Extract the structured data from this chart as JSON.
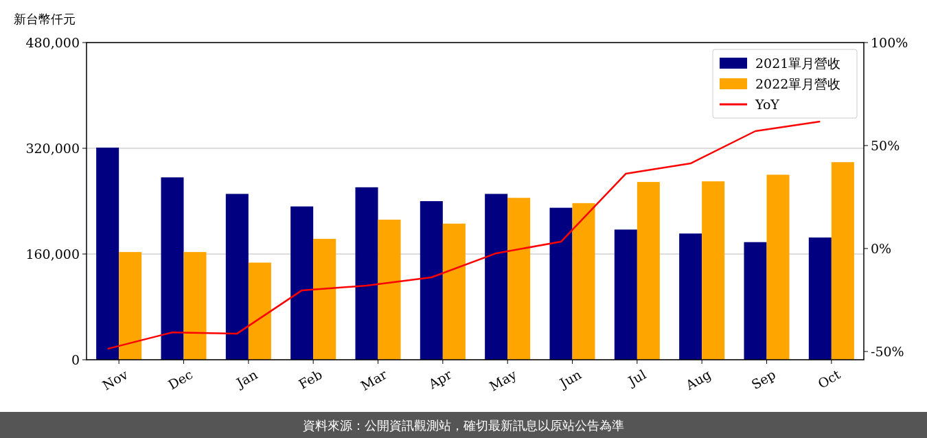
{
  "chart_data": {
    "type": "bar",
    "ylabel": "新台幣仟元",
    "categories": [
      "Nov",
      "Dec",
      "Jan",
      "Feb",
      "Mar",
      "Apr",
      "May",
      "Jun",
      "Jul",
      "Aug",
      "Sep",
      "Oct"
    ],
    "series": [
      {
        "name": "2021單月營收",
        "color": "#000080",
        "values": [
          321000,
          276000,
          251000,
          232000,
          261000,
          240000,
          251000,
          230000,
          197000,
          191000,
          178000,
          185000
        ]
      },
      {
        "name": "2022單月營收",
        "color": "#ffa500",
        "values": [
          163000,
          163000,
          147000,
          183000,
          212000,
          206000,
          245000,
          237000,
          269000,
          270000,
          280000,
          299000
        ]
      },
      {
        "name": "YoY",
        "type": "line",
        "axis": "y2",
        "color": "#ff0000",
        "values": [
          -48.7,
          -40.7,
          -41.3,
          -20.3,
          -18,
          -14,
          -2.3,
          3.3,
          36.3,
          41.3,
          57,
          61.7
        ]
      }
    ],
    "ylim": [
      0,
      480000
    ],
    "yticks": [
      {
        "value": 0,
        "label": "0"
      },
      {
        "value": 160000,
        "label": "160,000"
      },
      {
        "value": 320000,
        "label": "320,000"
      },
      {
        "value": 480000,
        "label": "480,000"
      }
    ],
    "y2lim": [
      -54,
      100
    ],
    "y2ticks": [
      {
        "value": -50,
        "label": "-50%"
      },
      {
        "value": 0,
        "label": "0%"
      },
      {
        "value": 50,
        "label": "50%"
      },
      {
        "value": 100,
        "label": "100%"
      }
    ],
    "grid": "y",
    "legend": "top right",
    "annotations": [
      "資料來源：公開資訊觀測站，確切最新訊息以原站公告為準"
    ]
  }
}
